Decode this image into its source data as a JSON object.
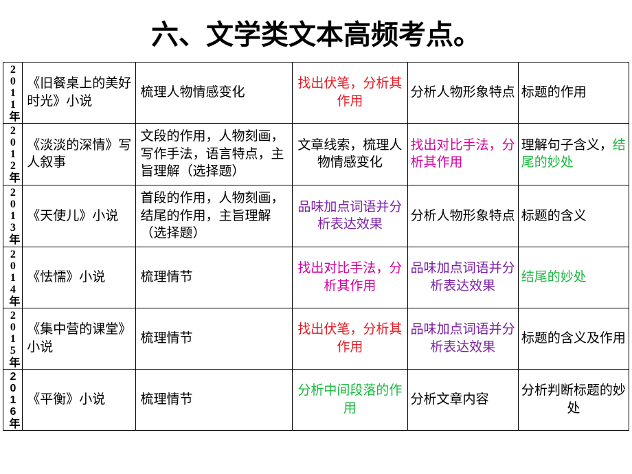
{
  "title": "六、文学类文本高频考点。",
  "colors": {
    "black": "#000000",
    "red": "#e71a22",
    "magenta": "#d6009f",
    "green": "#17b93e",
    "purple": "#7a1fa2"
  },
  "rows": [
    {
      "year": "2011年",
      "year_font": "serif",
      "c1": [
        {
          "t": "《旧餐桌上的美好时光》小说",
          "c": "black"
        }
      ],
      "c2": [
        {
          "t": "梳理人物情感变化",
          "c": "black"
        }
      ],
      "c3": [
        {
          "t": "找出伏笔，分析其作用",
          "c": "red"
        }
      ],
      "c4": [
        {
          "t": "分析人物形象特点",
          "c": "black"
        }
      ],
      "c5": [
        {
          "t": "标题的作用",
          "c": "black"
        }
      ],
      "c4_align": "center",
      "c5_align": "left"
    },
    {
      "year": "2012年",
      "year_font": "serif",
      "c1": [
        {
          "t": "《淡淡的深情》写人叙事",
          "c": "black"
        }
      ],
      "c2": [
        {
          "t": "文段的作用，人物刻画，写作手法，语言特点，主旨理解（选择题）",
          "c": "black"
        }
      ],
      "c3": [
        {
          "t": "文章线索，梳理人物情感变化",
          "c": "black"
        }
      ],
      "c4": [
        {
          "t": "找出对比手法，分析其作用",
          "c": "magenta"
        }
      ],
      "c5": [
        {
          "t": "理解句子含义，",
          "c": "black"
        },
        {
          "t": "结尾的妙处",
          "c": "green"
        }
      ],
      "c4_align": "left",
      "c5_align": "left"
    },
    {
      "year": "2013年",
      "year_font": "serif",
      "c1": [
        {
          "t": "《天使儿》小说",
          "c": "black"
        }
      ],
      "c2": [
        {
          "t": "首段的作用，人物刻画，结尾的作用，主旨理解（选择题）",
          "c": "black"
        }
      ],
      "c3": [
        {
          "t": "品味加点词语并分析表达效果",
          "c": "purple"
        }
      ],
      "c4": [
        {
          "t": "分析人物形象特点",
          "c": "black"
        }
      ],
      "c5": [
        {
          "t": "标题的含义",
          "c": "black"
        }
      ],
      "c4_align": "center",
      "c5_align": "left"
    },
    {
      "year": "2014年",
      "year_font": "serif",
      "c1": [
        {
          "t": "《怯懦》小说",
          "c": "black"
        }
      ],
      "c2": [
        {
          "t": "梳理情节",
          "c": "black"
        }
      ],
      "c3": [
        {
          "t": "找出对比手法，分析其作用",
          "c": "magenta"
        }
      ],
      "c4": [
        {
          "t": "品味加点词语并分析表达效果",
          "c": "purple"
        }
      ],
      "c5": [
        {
          "t": "结尾的妙处",
          "c": "green"
        }
      ],
      "c4_align": "center",
      "c5_align": "left"
    },
    {
      "year": "2015年",
      "year_font": "serif",
      "c1": [
        {
          "t": "《集中营的课堂》小说",
          "c": "black"
        }
      ],
      "c2": [
        {
          "t": "梳理情节",
          "c": "black"
        }
      ],
      "c3": [
        {
          "t": "找出伏笔，分析其作用",
          "c": "red"
        }
      ],
      "c4": [
        {
          "t": "品味加点词语并分析表达效果",
          "c": "purple"
        }
      ],
      "c5": [
        {
          "t": "标题的含义及作用",
          "c": "black"
        }
      ],
      "c4_align": "center",
      "c5_align": "center"
    },
    {
      "year": "2016年",
      "year_font": "sans",
      "c1": [
        {
          "t": "《平衡》小说",
          "c": "black"
        }
      ],
      "c2": [
        {
          "t": "梳理情节",
          "c": "black"
        }
      ],
      "c3": [
        {
          "t": "分析中间段落的作用",
          "c": "green"
        }
      ],
      "c4": [
        {
          "t": "分析文章内容",
          "c": "black"
        }
      ],
      "c5": [
        {
          "t": "分析判断标题的妙处",
          "c": "black"
        }
      ],
      "c4_align": "left",
      "c5_align": "center"
    }
  ]
}
